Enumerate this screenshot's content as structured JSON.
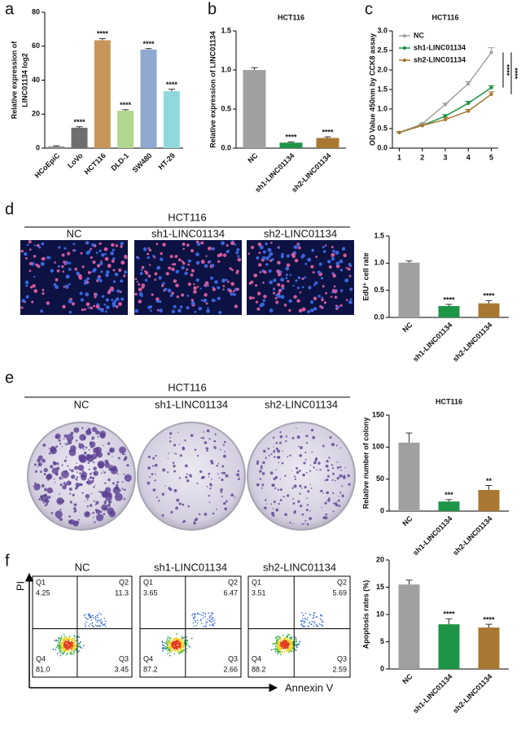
{
  "chart_data": [
    {
      "type": "bar",
      "ylabel": [
        "Relative expression of",
        "LINC01134  log2"
      ],
      "categories": [
        "HCoEpiC",
        "LoVo",
        "HCT116",
        "DLD-1",
        "SW480",
        "HT-29"
      ],
      "values": [
        1,
        12,
        63.5,
        22,
        58,
        33.5
      ],
      "errors": [
        0.4,
        0.6,
        1,
        0.6,
        0.6,
        1.2
      ],
      "colors": [
        "#8c8c8c",
        "#6e6e6e",
        "#c8965a",
        "#b2d68e",
        "#8fa9cf",
        "#8fd8dc"
      ],
      "significance": [
        null,
        "****",
        "****",
        "****",
        "****",
        "****"
      ],
      "ylim": [
        0,
        80
      ],
      "yticks": [
        0,
        20,
        40,
        60,
        80
      ],
      "grid": false
    },
    {
      "type": "bar",
      "title": "HCT116",
      "ylabel": "Relative expression of LINC01134",
      "categories": [
        "NC",
        "sh1-LINC01134",
        "sh2-LINC01134"
      ],
      "values": [
        1.0,
        0.07,
        0.13
      ],
      "errors": [
        0.03,
        0.01,
        0.015
      ],
      "colors": [
        "#a0a0a0",
        "#1e9447",
        "#a87832"
      ],
      "significance": [
        null,
        "****",
        "****"
      ],
      "ylim": [
        0,
        1.5
      ],
      "yticks": [
        {
          "value": 0,
          "label": "0.0"
        },
        {
          "value": 0.5,
          "label": "0.5"
        },
        {
          "value": 1,
          "label": "1.0"
        },
        {
          "value": 1.5,
          "label": "1.5"
        }
      ],
      "grid": false
    },
    {
      "type": "line",
      "title": "HCT116",
      "ylabel": "OD Value 450nm by CCK8 assay",
      "x": [
        1,
        2,
        3,
        4,
        5
      ],
      "series": [
        {
          "name": "NC",
          "color": "#a0a0a0",
          "values": [
            0.4,
            0.62,
            1.12,
            1.65,
            2.45
          ],
          "errors": [
            0.02,
            0.02,
            0.03,
            0.05,
            0.12
          ]
        },
        {
          "name": "sh1-LINC01134",
          "color": "#1e9447",
          "values": [
            0.4,
            0.58,
            0.82,
            1.15,
            1.55
          ],
          "errors": [
            0.02,
            0.02,
            0.04,
            0.05,
            0.05
          ]
        },
        {
          "name": "sh2-LINC01134",
          "color": "#a87832",
          "values": [
            0.4,
            0.58,
            0.73,
            0.95,
            1.38
          ],
          "errors": [
            0.02,
            0.02,
            0.05,
            0.04,
            0.06
          ]
        }
      ],
      "significance": [
        "****",
        "****"
      ],
      "legend": "upper left",
      "xlim": [
        0.7,
        5.3
      ],
      "xticks": [
        1,
        2,
        3,
        4,
        5
      ],
      "ylim": [
        0,
        3
      ],
      "yticks": [
        {
          "value": 0,
          "label": "0.0"
        },
        {
          "value": 0.5,
          "label": "0.5"
        },
        {
          "value": 1,
          "label": "1.0"
        },
        {
          "value": 1.5,
          "label": "1.5"
        },
        {
          "value": 2,
          "label": "2.0"
        },
        {
          "value": 2.5,
          "label": "2.5"
        },
        {
          "value": 3,
          "label": "3.0"
        }
      ],
      "grid": false
    },
    {
      "type": "bar",
      "ylabel": "EdU⁺ cell rate",
      "categories": [
        "NC",
        "sh1-LINC01134",
        "sh2-LINC01134"
      ],
      "values": [
        1.01,
        0.21,
        0.26
      ],
      "errors": [
        0.03,
        0.03,
        0.05
      ],
      "colors": [
        "#a0a0a0",
        "#1e9447",
        "#a87832"
      ],
      "significance": [
        null,
        "****",
        "****"
      ],
      "ylim": [
        0,
        1.5
      ],
      "yticks": [
        {
          "value": 0,
          "label": "0.0"
        },
        {
          "value": 0.5,
          "label": "0.5"
        },
        {
          "value": 1,
          "label": "1.0"
        },
        {
          "value": 1.5,
          "label": "1.5"
        }
      ],
      "grid": false
    },
    {
      "type": "bar",
      "title": "HCT116",
      "ylabel": "Relative number of colony",
      "categories": [
        "NC",
        "sh1-LINC01134",
        "sh2-LINC01134"
      ],
      "values": [
        107,
        15,
        33
      ],
      "errors": [
        15,
        3,
        7
      ],
      "colors": [
        "#a0a0a0",
        "#1e9447",
        "#a87832"
      ],
      "significance": [
        null,
        "***",
        "**"
      ],
      "ylim": [
        0,
        150
      ],
      "yticks": [
        0,
        50,
        100,
        150
      ],
      "grid": false
    },
    {
      "type": "bar",
      "ylabel": "Apoptosis rates (%)",
      "categories": [
        "NC",
        "sh1-LINC01134",
        "sh2-LINC01134"
      ],
      "values": [
        15.5,
        8.2,
        7.6
      ],
      "errors": [
        0.8,
        1,
        0.6
      ],
      "colors": [
        "#a0a0a0",
        "#1e9447",
        "#a87832"
      ],
      "significance": [
        null,
        "****",
        "****"
      ],
      "ylim": [
        0,
        20
      ],
      "yticks": [
        0,
        5,
        10,
        15,
        20
      ],
      "grid": false
    }
  ],
  "panels": [
    "a",
    "b",
    "c",
    "d",
    "e",
    "f"
  ],
  "edu": {
    "title": "HCT116",
    "labels": [
      "NC",
      "sh1-LINC01134",
      "sh2-LINC01134"
    ]
  },
  "colony": {
    "title": "HCT116",
    "labels": [
      "NC",
      "sh1-LINC01134",
      "sh2-LINC01134"
    ]
  },
  "flow": {
    "labels": [
      "NC",
      "sh1-LINC01134",
      "sh2-LINC01134"
    ],
    "y_axis": "PI",
    "x_axis": "Annexin V",
    "quadrants": [
      "Q1",
      "Q2",
      "Q3",
      "Q4"
    ],
    "plots": [
      {
        "q1": "4.25",
        "q2": "11.3",
        "q3": "3.45",
        "q4": "81.0"
      },
      {
        "q1": "3.65",
        "q2": "6.47",
        "q3": "2.66",
        "q4": "87.2"
      },
      {
        "q1": "3.51",
        "q2": "5.69",
        "q3": "2.59",
        "q4": "88.2"
      }
    ]
  }
}
